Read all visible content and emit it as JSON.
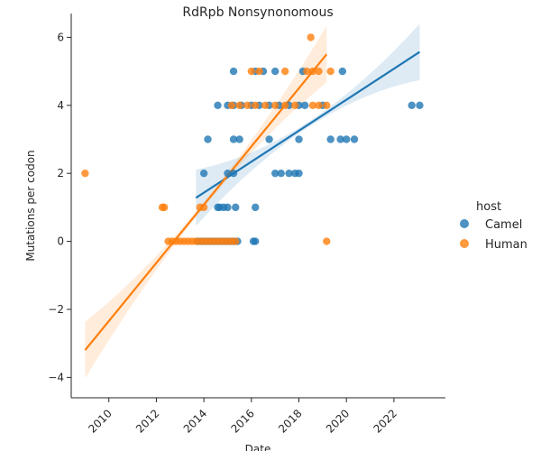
{
  "chart_data": {
    "type": "scatter",
    "title": "RdRpb Nonsynonomous",
    "xlabel": "Date",
    "ylabel": "Mutations per codon",
    "xlim": [
      "2008-06-01",
      "2024-03-01"
    ],
    "ylim": [
      -4.6,
      6.7
    ],
    "x_ticks": [
      "2010",
      "2012",
      "2014",
      "2016",
      "2018",
      "2020",
      "2022"
    ],
    "y_ticks": [
      "−4",
      "−2",
      "0",
      "2",
      "4",
      "6"
    ],
    "grid": false,
    "legend": {
      "title": "host",
      "placement": "right",
      "entries": [
        "Camel",
        "Human"
      ]
    },
    "series": [
      {
        "name": "Camel",
        "color": "#1f77b4",
        "points": [
          [
            "2013-10-01",
            0
          ],
          [
            "2013-12-01",
            0
          ],
          [
            "2014-02-01",
            0
          ],
          [
            "2014-04-01",
            0
          ],
          [
            "2014-06-01",
            0
          ],
          [
            "2014-08-01",
            0
          ],
          [
            "2014-10-01",
            0
          ],
          [
            "2014-12-01",
            0
          ],
          [
            "2015-02-01",
            0
          ],
          [
            "2015-04-01",
            0
          ],
          [
            "2015-06-01",
            0
          ],
          [
            "2016-02-01",
            0
          ],
          [
            "2016-03-01",
            0
          ],
          [
            "2014-11-01",
            1
          ],
          [
            "2015-01-01",
            1
          ],
          [
            "2015-05-01",
            1
          ],
          [
            "2016-03-01",
            1
          ],
          [
            "2014-08-01",
            1
          ],
          [
            "2014-09-01",
            1
          ],
          [
            "2014-01-01",
            2
          ],
          [
            "2015-01-01",
            2
          ],
          [
            "2015-04-01",
            2
          ],
          [
            "2017-01-01",
            2
          ],
          [
            "2017-04-01",
            2
          ],
          [
            "2017-08-01",
            2
          ],
          [
            "2017-11-01",
            2
          ],
          [
            "2018-01-01",
            2
          ],
          [
            "2014-03-01",
            3
          ],
          [
            "2015-04-01",
            3
          ],
          [
            "2015-07-01",
            3
          ],
          [
            "2016-10-01",
            3
          ],
          [
            "2018-01-01",
            3
          ],
          [
            "2019-05-01",
            3
          ],
          [
            "2019-10-01",
            3
          ],
          [
            "2020-01-01",
            3
          ],
          [
            "2020-05-01",
            3
          ],
          [
            "2014-08-01",
            4
          ],
          [
            "2015-01-01",
            4
          ],
          [
            "2015-04-01",
            4
          ],
          [
            "2015-08-01",
            4
          ],
          [
            "2016-01-01",
            4
          ],
          [
            "2016-05-01",
            4
          ],
          [
            "2016-10-01",
            4
          ],
          [
            "2017-03-01",
            4
          ],
          [
            "2017-08-01",
            4
          ],
          [
            "2018-01-01",
            4
          ],
          [
            "2018-04-01",
            4
          ],
          [
            "2019-01-01",
            4
          ],
          [
            "2022-10-01",
            4
          ],
          [
            "2023-02-01",
            4
          ],
          [
            "2015-04-01",
            5
          ],
          [
            "2016-03-01",
            5
          ],
          [
            "2016-07-01",
            5
          ],
          [
            "2017-01-01",
            5
          ],
          [
            "2018-03-01",
            5
          ],
          [
            "2019-11-01",
            5
          ]
        ],
        "fit": {
          "x": [
            "2013-09-01",
            "2023-02-01"
          ],
          "y": [
            1.28,
            5.57
          ]
        }
      },
      {
        "name": "Human",
        "color": "#ff7f0e",
        "points": [
          [
            "2009-01-01",
            2
          ],
          [
            "2012-04-01",
            1
          ],
          [
            "2012-05-01",
            1
          ],
          [
            "2013-11-01",
            1
          ],
          [
            "2014-01-01",
            1
          ],
          [
            "2012-07-01",
            0
          ],
          [
            "2012-09-01",
            0
          ],
          [
            "2012-11-01",
            0
          ],
          [
            "2013-01-01",
            0
          ],
          [
            "2013-03-01",
            0
          ],
          [
            "2013-05-01",
            0
          ],
          [
            "2013-07-01",
            0
          ],
          [
            "2013-09-01",
            0
          ],
          [
            "2013-11-01",
            0
          ],
          [
            "2014-01-01",
            0
          ],
          [
            "2014-03-01",
            0
          ],
          [
            "2014-05-01",
            0
          ],
          [
            "2014-07-01",
            0
          ],
          [
            "2014-09-01",
            0
          ],
          [
            "2014-11-01",
            0
          ],
          [
            "2015-01-01",
            0
          ],
          [
            "2015-03-01",
            0
          ],
          [
            "2015-05-01",
            0
          ],
          [
            "2019-03-01",
            0
          ],
          [
            "2015-03-01",
            4
          ],
          [
            "2015-07-01",
            4
          ],
          [
            "2015-11-01",
            4
          ],
          [
            "2016-03-01",
            4
          ],
          [
            "2016-08-01",
            4
          ],
          [
            "2017-01-01",
            4
          ],
          [
            "2017-06-01",
            4
          ],
          [
            "2017-11-01",
            4
          ],
          [
            "2018-08-01",
            4
          ],
          [
            "2018-11-01",
            4
          ],
          [
            "2019-03-01",
            4
          ],
          [
            "2016-01-01",
            5
          ],
          [
            "2016-05-01",
            5
          ],
          [
            "2017-06-01",
            5
          ],
          [
            "2018-05-01",
            5
          ],
          [
            "2018-08-01",
            5
          ],
          [
            "2018-11-01",
            5
          ],
          [
            "2019-05-01",
            5
          ],
          [
            "2018-07-01",
            6
          ]
        ],
        "fit": {
          "x": [
            "2009-01-01",
            "2019-03-01"
          ],
          "y": [
            -3.2,
            5.5
          ]
        }
      }
    ]
  }
}
